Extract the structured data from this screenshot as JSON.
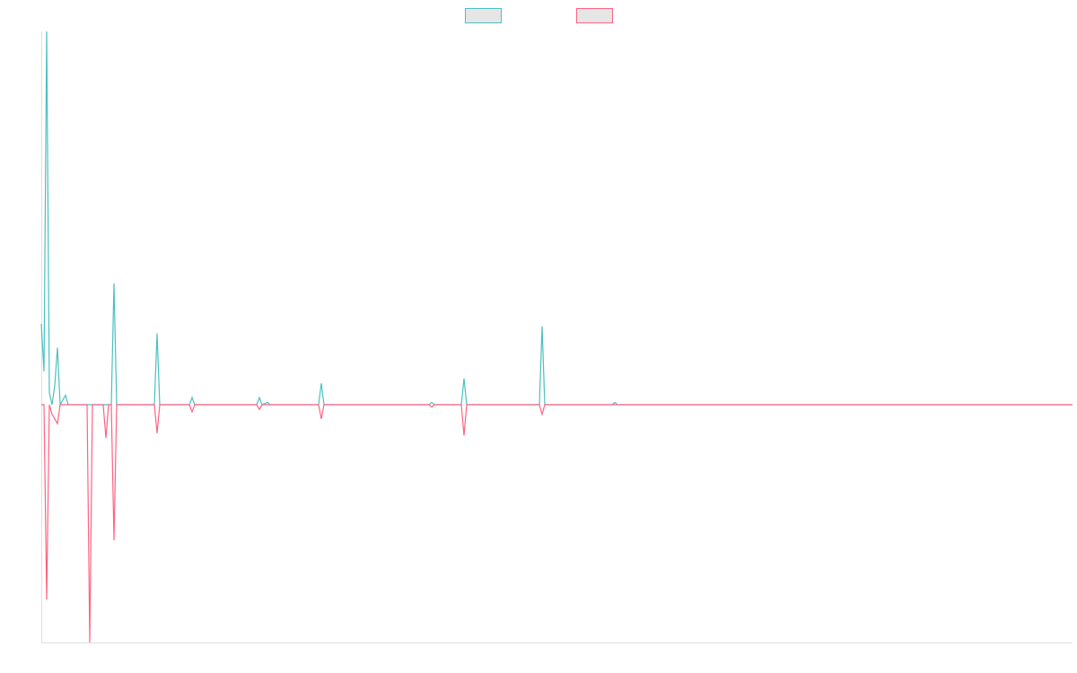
{
  "chart_data": {
    "type": "line",
    "x": [
      0,
      1,
      2,
      3,
      4,
      5,
      6,
      7,
      9,
      10,
      16,
      17,
      18,
      19,
      23,
      24,
      25,
      26,
      27,
      28,
      42,
      43,
      44,
      55,
      56,
      57,
      80,
      81,
      82,
      84,
      85,
      103,
      104,
      105,
      144,
      145,
      146,
      156,
      157,
      158,
      185,
      186,
      187,
      212,
      213,
      214,
      383
    ],
    "xlim": [
      0,
      383
    ],
    "ylim": [
      -100,
      157
    ],
    "legend": "top",
    "series": [
      {
        "color": "#4bc0c0",
        "values": [
          34,
          14,
          157,
          5,
          0,
          8,
          24,
          0,
          4,
          0,
          0,
          0,
          0,
          0,
          0,
          0,
          0,
          0,
          51,
          0,
          0,
          30,
          0,
          0,
          3,
          0,
          0,
          3,
          0,
          1,
          0,
          0,
          9,
          0,
          0,
          1,
          0,
          0,
          11,
          0,
          0,
          33,
          0,
          0,
          1,
          0,
          0
        ]
      },
      {
        "color": "#ff6384",
        "values": [
          0,
          0,
          -82,
          0,
          -4,
          -6,
          -8,
          0,
          0,
          0,
          0,
          0,
          -100,
          0,
          0,
          -14,
          0,
          0,
          -57,
          0,
          0,
          -12,
          0,
          0,
          -3,
          0,
          0,
          -2,
          0,
          0,
          0,
          0,
          -6,
          0,
          0,
          -1,
          0,
          0,
          -13,
          0,
          0,
          -4,
          0,
          0,
          0,
          0,
          0
        ]
      }
    ]
  }
}
